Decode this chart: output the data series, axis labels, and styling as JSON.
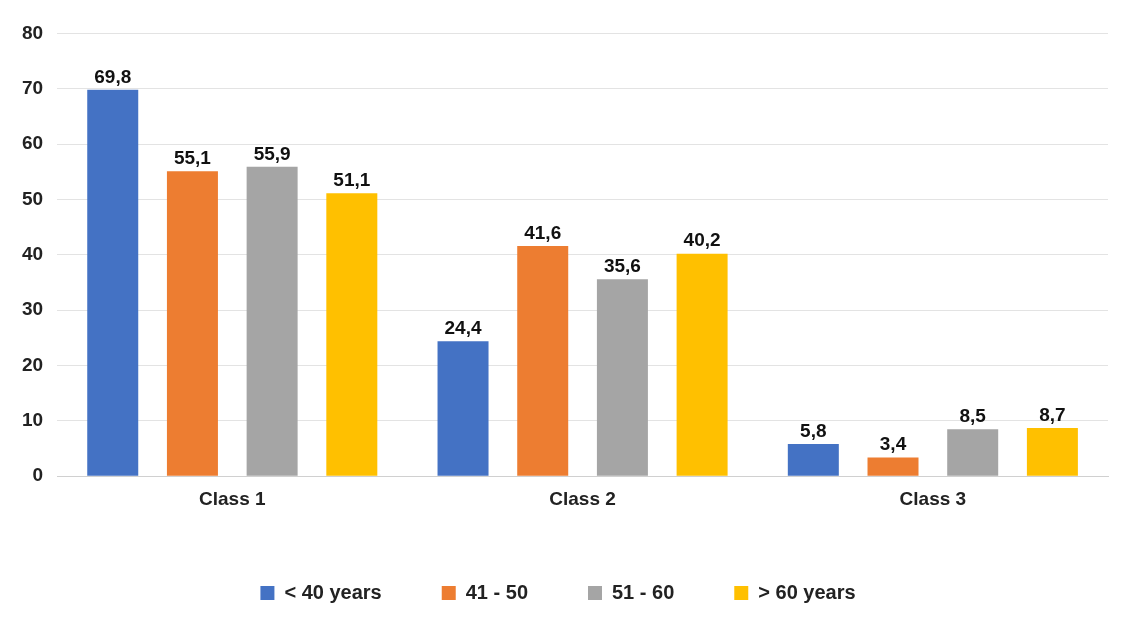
{
  "chart_data": {
    "type": "bar",
    "categories": [
      "Class 1",
      "Class 2",
      "Class 3"
    ],
    "series": [
      {
        "name": "< 40 years",
        "color": "#4472c4",
        "values": [
          69.8,
          24.4,
          5.8
        ],
        "value_labels": [
          "69,8",
          "24,4",
          "5,8"
        ]
      },
      {
        "name": "41 - 50",
        "color": "#ed7d31",
        "values": [
          55.1,
          41.6,
          3.4
        ],
        "value_labels": [
          "55,1",
          "41,6",
          "3,4"
        ]
      },
      {
        "name": "51 - 60",
        "color": "#a5a5a5",
        "values": [
          55.9,
          35.6,
          8.5
        ],
        "value_labels": [
          "55,9",
          "35,6",
          "8,5"
        ]
      },
      {
        "name": "> 60 years",
        "color": "#ffc000",
        "values": [
          51.1,
          40.2,
          8.7
        ],
        "value_labels": [
          "51,1",
          "40,2",
          "8,7"
        ]
      }
    ],
    "ylim": [
      0,
      80
    ],
    "yticks": [
      0,
      10,
      20,
      30,
      40,
      50,
      60,
      70,
      80
    ],
    "grid": "y",
    "legend": "bottom"
  }
}
